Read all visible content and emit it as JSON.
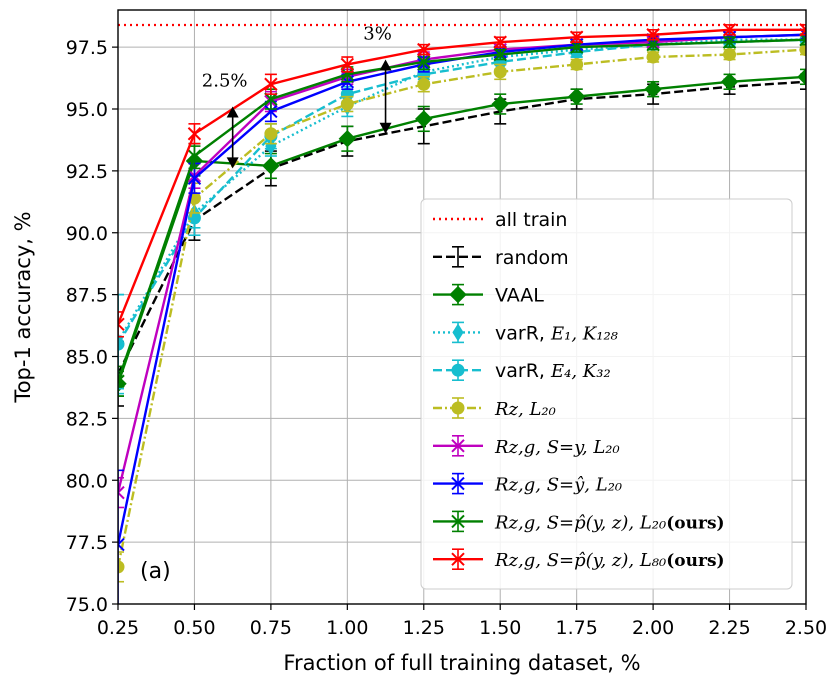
{
  "chart_data": {
    "type": "line",
    "title": "",
    "xlabel": "Fraction of full training dataset, %",
    "ylabel": "Top-1 accuracy, %",
    "xlim": [
      0.25,
      2.5
    ],
    "ylim": [
      75.0,
      99.0
    ],
    "x": [
      0.25,
      0.5,
      0.75,
      1.0,
      1.25,
      1.5,
      1.75,
      2.0,
      2.25,
      2.5
    ],
    "xticks": [
      "0.25",
      "0.50",
      "0.75",
      "1.00",
      "1.25",
      "1.50",
      "1.75",
      "2.00",
      "2.25",
      "2.50"
    ],
    "yticks": [
      "75.0",
      "77.5",
      "80.0",
      "82.5",
      "85.0",
      "87.5",
      "90.0",
      "92.5",
      "95.0",
      "97.5"
    ],
    "grid": true,
    "legend_position": "lower-right",
    "reference_line": {
      "name": "all train",
      "value": 99.0,
      "color": "#ff0000",
      "style": "dotted"
    },
    "series": [
      {
        "name": "random",
        "math": "",
        "color": "#000000",
        "dash": "dashed",
        "marker": "none",
        "values": [
          84.3,
          90.5,
          92.6,
          93.7,
          94.3,
          94.9,
          95.4,
          95.6,
          95.9,
          96.1
        ],
        "errors": [
          1.3,
          0.8,
          0.7,
          0.6,
          0.7,
          0.5,
          0.4,
          0.4,
          0.3,
          0.3
        ]
      },
      {
        "name": "VAAL",
        "math": "",
        "color": "#008000",
        "dash": "solid",
        "marker": "diamond",
        "values": [
          83.9,
          92.9,
          92.7,
          93.8,
          94.6,
          95.2,
          95.5,
          95.8,
          96.1,
          96.3
        ],
        "errors": [
          0.5,
          0.6,
          0.5,
          0.5,
          0.5,
          0.4,
          0.3,
          0.3,
          0.3,
          0.3
        ]
      },
      {
        "name": "varR, ",
        "math": "E₁, K₁₂₈",
        "color": "#17becf",
        "dash": "dotted",
        "marker": "thin-diamond",
        "values": [
          85.6,
          90.8,
          93.5,
          95.1,
          96.5,
          97.1,
          97.4,
          97.6,
          97.8,
          97.8
        ],
        "errors": [
          1.9,
          0.6,
          0.4,
          0.4,
          0.3,
          0.3,
          0.3,
          0.2,
          0.2,
          0.2
        ]
      },
      {
        "name": "varR, ",
        "math": "E₄, K₃₂",
        "color": "#17becf",
        "dash": "dashed",
        "marker": "circle",
        "values": [
          85.5,
          90.6,
          93.9,
          95.6,
          96.4,
          96.9,
          97.3,
          97.6,
          97.7,
          97.8
        ],
        "errors": [
          2.0,
          0.7,
          0.5,
          0.3,
          0.3,
          0.3,
          0.2,
          0.2,
          0.2,
          0.2
        ]
      },
      {
        "name": "",
        "math": "Rz, L₂₀",
        "color": "#bcbd22",
        "dash": "dashdot",
        "marker": "circle",
        "values": [
          76.5,
          91.4,
          94.0,
          95.2,
          96.0,
          96.5,
          96.8,
          97.1,
          97.2,
          97.4
        ],
        "errors": [
          0.6,
          0.6,
          0.4,
          0.3,
          0.3,
          0.3,
          0.2,
          0.2,
          0.2,
          0.2
        ]
      },
      {
        "name": "",
        "math": "Rz,g, S=y, L₂₀",
        "color": "#bf00bf",
        "dash": "solid",
        "marker": "x",
        "values": [
          79.5,
          92.3,
          95.3,
          96.3,
          97.0,
          97.4,
          97.6,
          97.7,
          97.9,
          98.0
        ],
        "errors": [
          0.6,
          0.5,
          0.4,
          0.3,
          0.3,
          0.2,
          0.2,
          0.2,
          0.2,
          0.2
        ]
      },
      {
        "name": "",
        "math": "Rz,g, S=ŷ, L₂₀",
        "color": "#0000ff",
        "dash": "solid",
        "marker": "x",
        "values": [
          77.4,
          92.2,
          94.9,
          96.1,
          96.8,
          97.3,
          97.6,
          97.8,
          97.9,
          98.0
        ],
        "errors": [
          3.0,
          0.6,
          0.4,
          0.3,
          0.3,
          0.2,
          0.2,
          0.2,
          0.2,
          0.2
        ]
      },
      {
        "name": "",
        "math": "Rz,g, S=p̂(y, z), L₂₀",
        "bold": "(ours)",
        "color": "#008000",
        "dash": "solid",
        "marker": "x",
        "values": [
          84.0,
          93.1,
          95.4,
          96.4,
          96.9,
          97.2,
          97.5,
          97.6,
          97.7,
          97.8
        ],
        "errors": [
          0.6,
          0.5,
          0.4,
          0.3,
          0.3,
          0.2,
          0.2,
          0.2,
          0.2,
          0.2
        ]
      },
      {
        "name": "",
        "math": "Rz,g, S=p̂(y, z), L₈₀",
        "bold": "(ours)",
        "color": "#ff0000",
        "dash": "solid",
        "marker": "x",
        "values": [
          86.3,
          94.0,
          96.0,
          96.8,
          97.4,
          97.7,
          97.9,
          98.0,
          98.2,
          98.2
        ],
        "errors": [
          0.5,
          0.4,
          0.4,
          0.3,
          0.2,
          0.2,
          0.2,
          0.2,
          0.2,
          0.2
        ]
      }
    ],
    "annotations": [
      {
        "text": "2.5%",
        "at_x": 0.625,
        "from_y": 92.6,
        "to_y": 95.1
      },
      {
        "text": "3%",
        "at_x": 1.125,
        "from_y": 94.0,
        "to_y": 97.0
      }
    ],
    "panel_label": "(a)"
  }
}
